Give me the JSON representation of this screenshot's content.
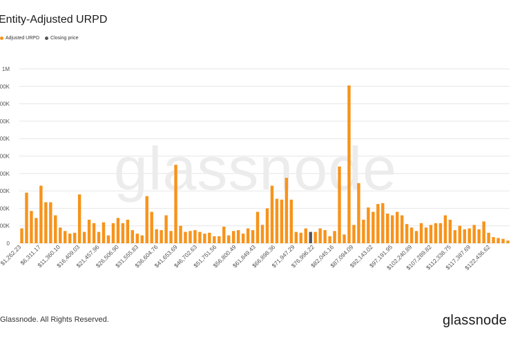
{
  "title": "Entity-Adjusted URPD",
  "legend": [
    {
      "label": "Adjusted URPD",
      "color": "#f7931a"
    },
    {
      "label": "Closing price",
      "color": "#555555"
    }
  ],
  "watermark": "glassnode",
  "footer": {
    "copyright": "Glassnode. All Rights Reserved.",
    "logo": "glassnode"
  },
  "colors": {
    "bar": "#f7931a",
    "highlight": "#555555",
    "grid": "#e6e6e6",
    "watermark": "#ececec"
  },
  "chart_data": {
    "type": "bar",
    "ylim": [
      0,
      1000000
    ],
    "yticks": [
      0,
      100000,
      200000,
      300000,
      400000,
      500000,
      600000,
      700000,
      800000,
      900000,
      1000000
    ],
    "ytick_labels": [
      "0",
      "100K",
      "200K",
      "300K",
      "400K",
      "500K",
      "600K",
      "700K",
      "800K",
      "900K",
      "1M"
    ],
    "xtick_labels": [
      "$1,262.23",
      "$6,311.17",
      "$11,360.10",
      "$16,409.03",
      "$21,457.96",
      "$26,506.90",
      "$31,555.83",
      "$36,604.76",
      "$41,653.69",
      "$46,702.63",
      "$51,751.56",
      "$56,800.49",
      "$61,849.43",
      "$66,898.36",
      "$71,947.29",
      "$76,996.22",
      "$82,045.16",
      "$87,094.09",
      "$92,143.02",
      "$97,191.95",
      "$102,240.89",
      "$107,289.82",
      "$112,338.75",
      "$117,387.69",
      "$122,436.62"
    ],
    "highlight_index": 60,
    "series": [
      {
        "values": [
          85000,
          290000,
          185000,
          145000,
          330000,
          235000,
          235000,
          160000,
          90000,
          70000,
          55000,
          60000,
          280000,
          65000,
          135000,
          115000,
          65000,
          120000,
          45000,
          115000,
          145000,
          115000,
          135000,
          75000,
          55000,
          45000,
          270000,
          180000,
          80000,
          75000,
          160000,
          70000,
          450000,
          100000,
          65000,
          70000,
          75000,
          65000,
          55000,
          60000,
          40000,
          40000,
          95000,
          45000,
          70000,
          75000,
          55000,
          85000,
          75000,
          180000,
          105000,
          200000,
          330000,
          255000,
          250000,
          375000,
          250000,
          65000,
          60000,
          85000,
          65000,
          65000,
          85000,
          75000,
          40000,
          70000,
          440000,
          50000,
          905000,
          105000,
          345000,
          135000,
          205000,
          180000,
          225000,
          230000,
          170000,
          160000,
          180000,
          160000,
          110000,
          90000,
          70000,
          115000,
          90000,
          105000,
          115000,
          115000,
          160000,
          135000,
          75000,
          100000,
          80000,
          85000,
          105000,
          80000,
          125000,
          60000,
          35000,
          30000,
          25000,
          15000
        ]
      }
    ]
  }
}
